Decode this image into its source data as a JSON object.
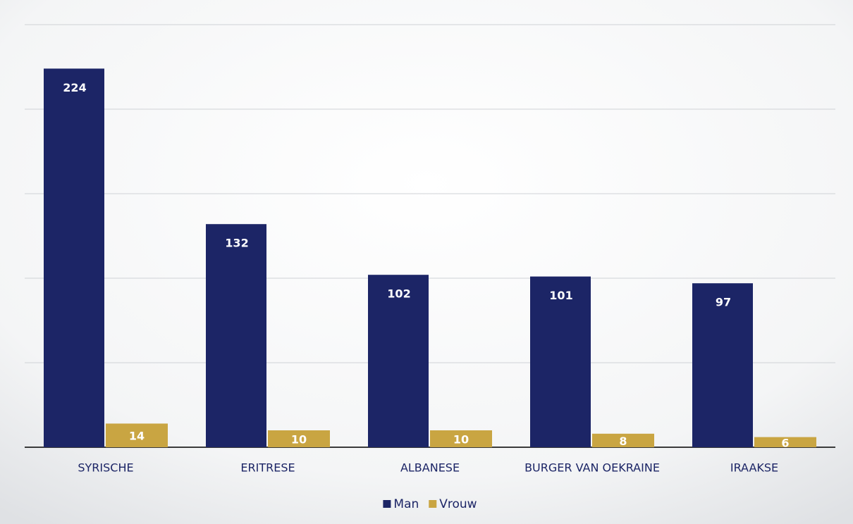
{
  "chart_data": {
    "type": "bar",
    "categories": [
      "SYRISCHE",
      "ERITRESE",
      "ALBANESE",
      "BURGER VAN OEKRAINE",
      "IRAAKSE"
    ],
    "series": [
      {
        "name": "Man",
        "color": "#1c2566",
        "values": [
          224,
          132,
          102,
          101,
          97
        ]
      },
      {
        "name": "Vrouw",
        "color": "#c9a542",
        "values": [
          14,
          10,
          10,
          8,
          6
        ]
      }
    ],
    "ylim": [
      0,
      250
    ],
    "yticks": [
      0,
      50,
      100,
      150,
      200,
      250
    ],
    "grid": true,
    "legend": "bottom"
  }
}
